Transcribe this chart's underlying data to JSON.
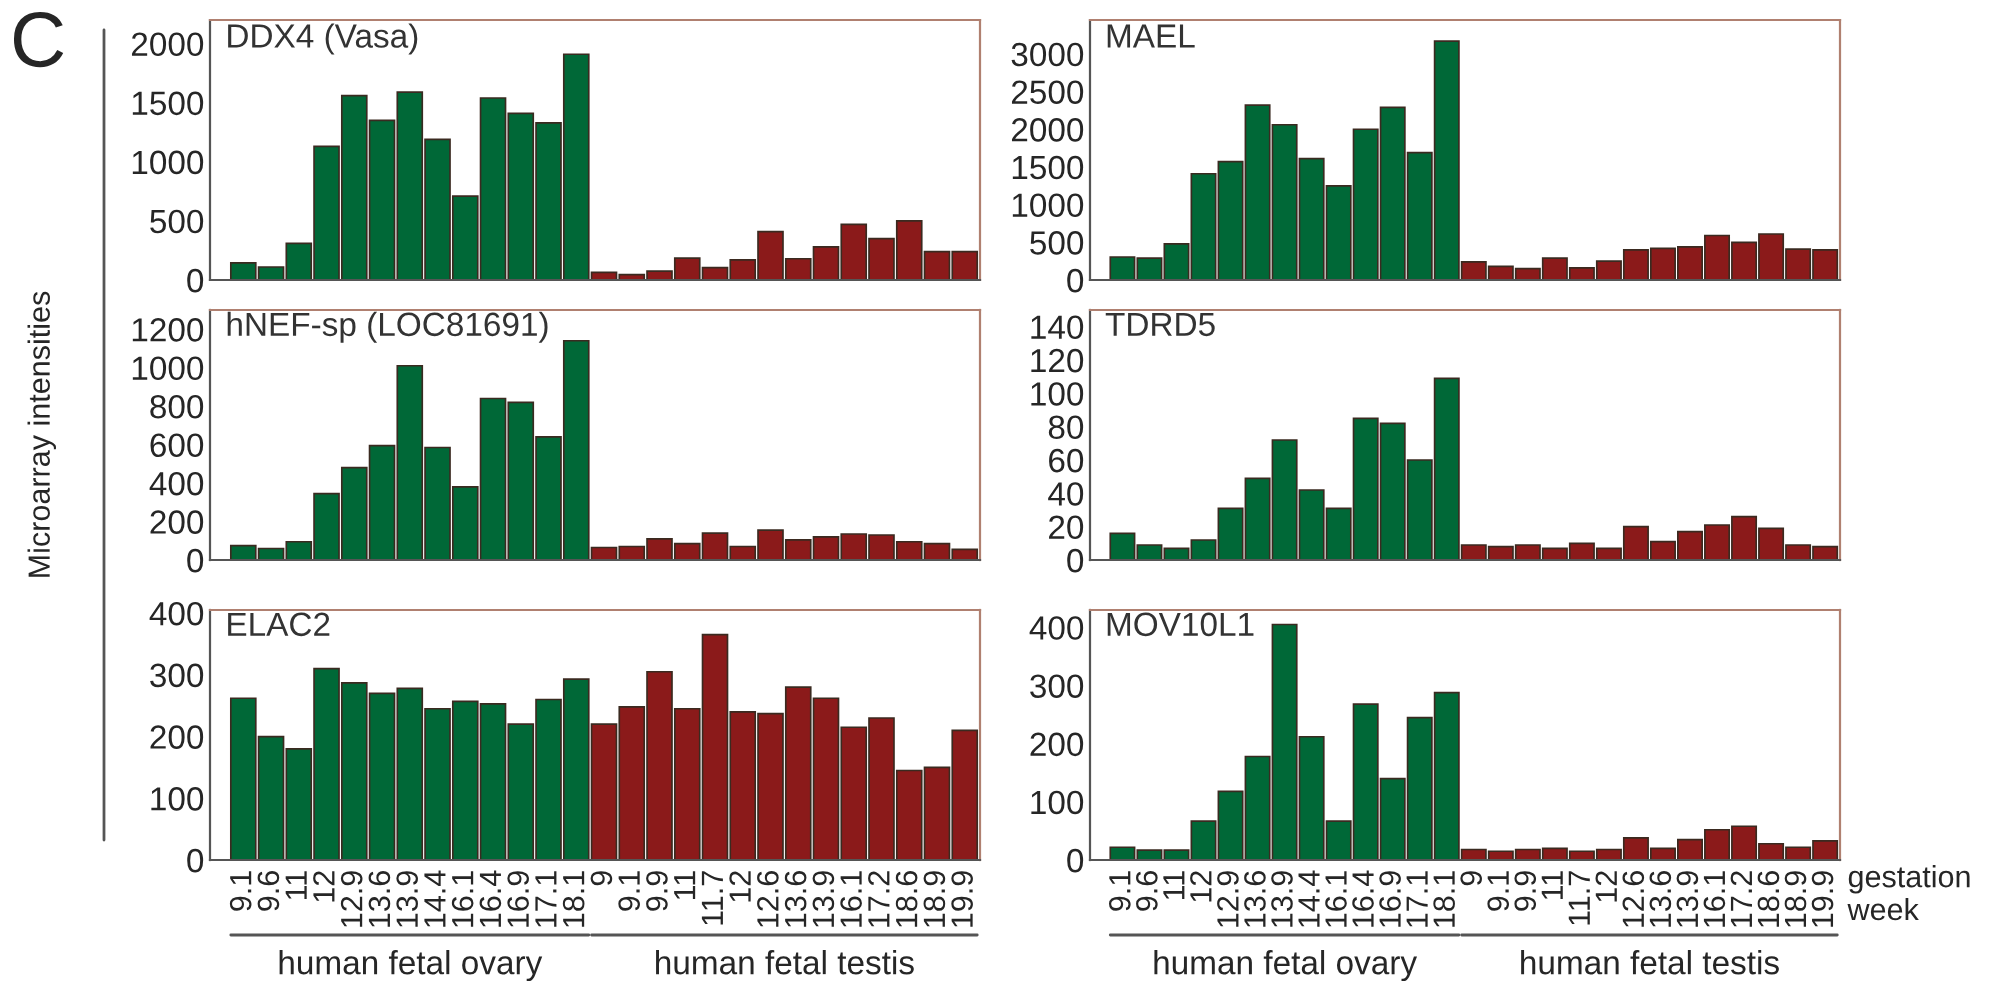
{
  "chart_data": [
    {
      "type": "bar",
      "title": "DDX4 (Vasa)",
      "tick_labels": "y",
      "categories": [
        "9.1",
        "9.6",
        "11",
        "12",
        "12.9",
        "13.6",
        "13.9",
        "14.4",
        "16.1",
        "16.4",
        "16.9",
        "17.1",
        "18.1",
        "9",
        "9.1",
        "9.9",
        "11",
        "11.7",
        "12",
        "12.6",
        "13.6",
        "13.9",
        "16.1",
        "17.2",
        "18.6",
        "18.9",
        "19.9"
      ],
      "values": [
        145,
        110,
        310,
        1130,
        1560,
        1350,
        1590,
        1190,
        710,
        1540,
        1410,
        1330,
        1910,
        65,
        45,
        75,
        185,
        105,
        170,
        410,
        180,
        280,
        470,
        350,
        500,
        240,
        240
      ],
      "colors": [
        "#006837",
        "#006837",
        "#006837",
        "#006837",
        "#006837",
        "#006837",
        "#006837",
        "#006837",
        "#006837",
        "#006837",
        "#006837",
        "#006837",
        "#006837",
        "#8b1a1a",
        "#8b1a1a",
        "#8b1a1a",
        "#8b1a1a",
        "#8b1a1a",
        "#8b1a1a",
        "#8b1a1a",
        "#8b1a1a",
        "#8b1a1a",
        "#8b1a1a",
        "#8b1a1a",
        "#8b1a1a",
        "#8b1a1a",
        "#8b1a1a"
      ],
      "ylim": [
        0,
        2200
      ],
      "yticks": [
        0,
        500,
        1000,
        1500,
        2000
      ]
    },
    {
      "type": "bar",
      "title": "MAEL",
      "tick_labels": "y",
      "categories": [
        "9.1",
        "9.6",
        "11",
        "12",
        "12.9",
        "13.6",
        "13.9",
        "14.4",
        "16.1",
        "16.4",
        "16.9",
        "17.1",
        "18.1",
        "9",
        "9.1",
        "9.9",
        "11",
        "11.7",
        "12",
        "12.6",
        "13.6",
        "13.9",
        "16.1",
        "17.2",
        "18.6",
        "18.9",
        "19.9"
      ],
      "values": [
        305,
        290,
        480,
        1410,
        1570,
        2320,
        2060,
        1610,
        1250,
        2000,
        2290,
        1690,
        3170,
        240,
        180,
        150,
        290,
        160,
        250,
        400,
        420,
        440,
        590,
        500,
        610,
        410,
        400
      ],
      "colors": [
        "#006837",
        "#006837",
        "#006837",
        "#006837",
        "#006837",
        "#006837",
        "#006837",
        "#006837",
        "#006837",
        "#006837",
        "#006837",
        "#006837",
        "#006837",
        "#8b1a1a",
        "#8b1a1a",
        "#8b1a1a",
        "#8b1a1a",
        "#8b1a1a",
        "#8b1a1a",
        "#8b1a1a",
        "#8b1a1a",
        "#8b1a1a",
        "#8b1a1a",
        "#8b1a1a",
        "#8b1a1a",
        "#8b1a1a",
        "#8b1a1a"
      ],
      "ylim": [
        0,
        3450
      ],
      "yticks": [
        0,
        500,
        1000,
        1500,
        2000,
        2500,
        3000
      ]
    },
    {
      "type": "bar",
      "title": "hNEF-sp (LOC81691)",
      "ylabel": "Microarray intensities",
      "tick_labels": "y",
      "categories": [
        "9.1",
        "9.6",
        "11",
        "12",
        "12.9",
        "13.6",
        "13.9",
        "14.4",
        "16.1",
        "16.4",
        "16.9",
        "17.1",
        "18.1",
        "9",
        "9.1",
        "9.9",
        "11",
        "11.7",
        "12",
        "12.6",
        "13.6",
        "13.9",
        "16.1",
        "17.2",
        "18.6",
        "18.9",
        "19.9"
      ],
      "values": [
        75,
        60,
        95,
        345,
        480,
        595,
        1010,
        585,
        380,
        840,
        820,
        640,
        1140,
        65,
        70,
        110,
        85,
        140,
        70,
        155,
        105,
        120,
        135,
        130,
        95,
        85,
        55
      ],
      "colors": [
        "#006837",
        "#006837",
        "#006837",
        "#006837",
        "#006837",
        "#006837",
        "#006837",
        "#006837",
        "#006837",
        "#006837",
        "#006837",
        "#006837",
        "#006837",
        "#8b1a1a",
        "#8b1a1a",
        "#8b1a1a",
        "#8b1a1a",
        "#8b1a1a",
        "#8b1a1a",
        "#8b1a1a",
        "#8b1a1a",
        "#8b1a1a",
        "#8b1a1a",
        "#8b1a1a",
        "#8b1a1a",
        "#8b1a1a",
        "#8b1a1a"
      ],
      "ylim": [
        0,
        1300
      ],
      "yticks": [
        0,
        200,
        400,
        600,
        800,
        1000,
        1200
      ]
    },
    {
      "type": "bar",
      "title": "TDRD5",
      "tick_labels": "y",
      "categories": [
        "9.1",
        "9.6",
        "11",
        "12",
        "12.9",
        "13.6",
        "13.9",
        "14.4",
        "16.1",
        "16.4",
        "16.9",
        "17.1",
        "18.1",
        "9",
        "9.1",
        "9.9",
        "11",
        "11.7",
        "12",
        "12.6",
        "13.6",
        "13.9",
        "16.1",
        "17.2",
        "18.6",
        "18.9",
        "19.9"
      ],
      "values": [
        16,
        9,
        7,
        12,
        31,
        49,
        72,
        42,
        31,
        85,
        82,
        60,
        109,
        9,
        8,
        9,
        7,
        10,
        7,
        20,
        11,
        17,
        21,
        26,
        19,
        9,
        8
      ],
      "colors": [
        "#006837",
        "#006837",
        "#006837",
        "#006837",
        "#006837",
        "#006837",
        "#006837",
        "#006837",
        "#006837",
        "#006837",
        "#006837",
        "#006837",
        "#006837",
        "#8b1a1a",
        "#8b1a1a",
        "#8b1a1a",
        "#8b1a1a",
        "#8b1a1a",
        "#8b1a1a",
        "#8b1a1a",
        "#8b1a1a",
        "#8b1a1a",
        "#8b1a1a",
        "#8b1a1a",
        "#8b1a1a",
        "#8b1a1a",
        "#8b1a1a"
      ],
      "ylim": [
        0,
        150
      ],
      "yticks": [
        0,
        20,
        40,
        60,
        80,
        100,
        120,
        140
      ]
    },
    {
      "type": "bar",
      "title": "ELAC2",
      "categories": [
        "9.1",
        "9.6",
        "11",
        "12",
        "12.9",
        "13.6",
        "13.9",
        "14.4",
        "16.1",
        "16.4",
        "16.9",
        "17.1",
        "18.1",
        "9",
        "9.1",
        "9.9",
        "11",
        "11.7",
        "12",
        "12.6",
        "13.6",
        "13.9",
        "16.1",
        "17.2",
        "18.6",
        "18.9",
        "19.9"
      ],
      "values": [
        262,
        200,
        180,
        310,
        287,
        270,
        278,
        245,
        257,
        253,
        220,
        260,
        293,
        220,
        248,
        305,
        245,
        365,
        240,
        237,
        280,
        262,
        215,
        230,
        145,
        150,
        210
      ],
      "colors": [
        "#006837",
        "#006837",
        "#006837",
        "#006837",
        "#006837",
        "#006837",
        "#006837",
        "#006837",
        "#006837",
        "#006837",
        "#006837",
        "#006837",
        "#006837",
        "#8b1a1a",
        "#8b1a1a",
        "#8b1a1a",
        "#8b1a1a",
        "#8b1a1a",
        "#8b1a1a",
        "#8b1a1a",
        "#8b1a1a",
        "#8b1a1a",
        "#8b1a1a",
        "#8b1a1a",
        "#8b1a1a",
        "#8b1a1a",
        "#8b1a1a"
      ],
      "ylim": [
        0,
        405
      ],
      "yticks": [
        0,
        100,
        200,
        300,
        400
      ],
      "annotations": [
        "human fetal ovary",
        "human fetal testis",
        "C"
      ]
    },
    {
      "type": "bar",
      "title": "MOV10L1",
      "xlabel": "gestation week",
      "categories": [
        "9.1",
        "9.6",
        "11",
        "12",
        "12.9",
        "13.6",
        "13.9",
        "14.4",
        "16.1",
        "16.4",
        "16.9",
        "17.1",
        "18.1",
        "9",
        "9.1",
        "9.9",
        "11",
        "11.7",
        "12",
        "12.6",
        "13.6",
        "13.9",
        "16.1",
        "17.2",
        "18.6",
        "18.9",
        "19.9"
      ],
      "values": [
        22,
        17,
        17,
        67,
        118,
        178,
        405,
        212,
        67,
        268,
        140,
        245,
        288,
        18,
        15,
        18,
        20,
        15,
        18,
        38,
        20,
        35,
        52,
        58,
        28,
        22,
        33
      ],
      "colors": [
        "#006837",
        "#006837",
        "#006837",
        "#006837",
        "#006837",
        "#006837",
        "#006837",
        "#006837",
        "#006837",
        "#006837",
        "#006837",
        "#006837",
        "#006837",
        "#8b1a1a",
        "#8b1a1a",
        "#8b1a1a",
        "#8b1a1a",
        "#8b1a1a",
        "#8b1a1a",
        "#8b1a1a",
        "#8b1a1a",
        "#8b1a1a",
        "#8b1a1a",
        "#8b1a1a",
        "#8b1a1a",
        "#8b1a1a",
        "#8b1a1a"
      ],
      "ylim": [
        0,
        430
      ],
      "yticks": [
        0,
        100,
        200,
        300,
        400
      ],
      "annotations": [
        "human fetal ovary",
        "human fetal testis"
      ]
    }
  ]
}
